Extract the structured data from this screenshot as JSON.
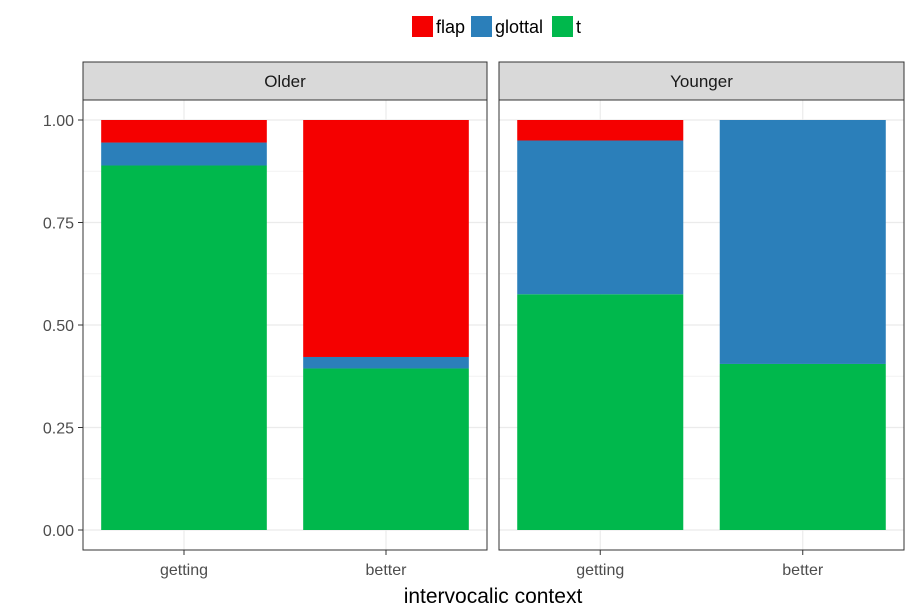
{
  "chart_data": {
    "type": "bar",
    "stacked": true,
    "position": "fill",
    "facets": [
      {
        "label": "Older",
        "categories": [
          "getting",
          "better"
        ],
        "series": [
          {
            "name": "flap",
            "values": [
              0.055,
              0.578
            ]
          },
          {
            "name": "glottal",
            "values": [
              0.056,
              0.028
            ]
          },
          {
            "name": "t",
            "values": [
              0.889,
              0.394
            ]
          }
        ]
      },
      {
        "label": "Younger",
        "categories": [
          "getting",
          "better"
        ],
        "series": [
          {
            "name": "flap",
            "values": [
              0.05,
              0.0
            ]
          },
          {
            "name": "glottal",
            "values": [
              0.375,
              0.595
            ]
          },
          {
            "name": "t",
            "values": [
              0.575,
              0.405
            ]
          }
        ]
      }
    ],
    "colors": {
      "flap": "#f50000",
      "glottal": "#2b7fba",
      "t": "#00b84c"
    },
    "stack_order_bottom_to_top": [
      "t",
      "glottal",
      "flap"
    ],
    "legend": {
      "entries": [
        "flap",
        "glottal",
        "t"
      ],
      "position": "top"
    },
    "xlabel": "intervocalic context",
    "ylabel": "",
    "ylim": [
      0,
      1
    ],
    "yticks": [
      "0.00",
      "0.25",
      "0.50",
      "0.75",
      "1.00"
    ],
    "grid": true
  }
}
